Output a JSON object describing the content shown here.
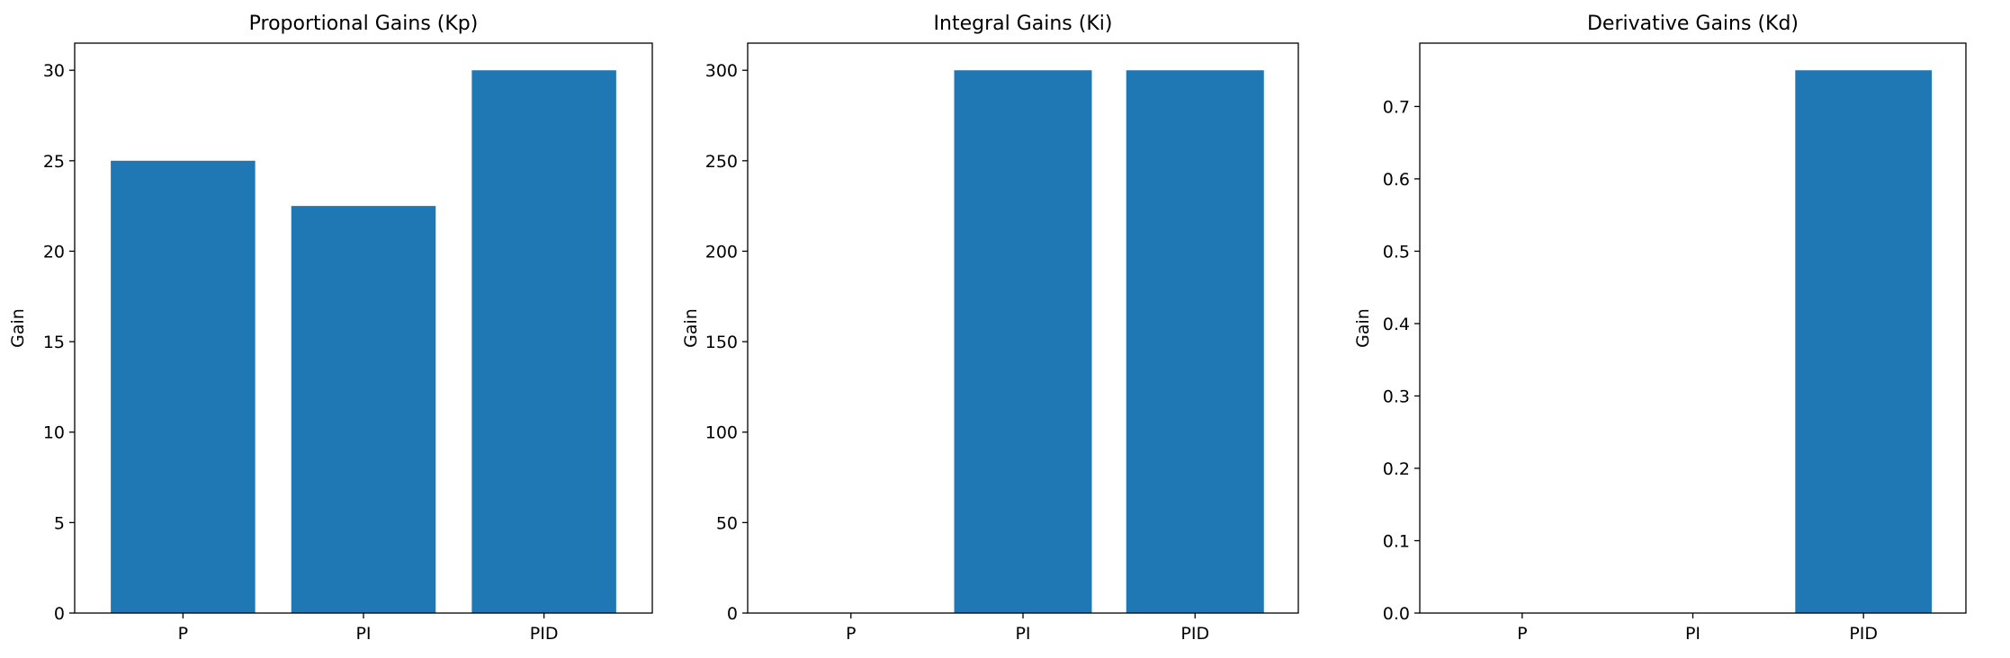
{
  "figure": {
    "bar_color": "#1f77b4",
    "axis_color": "#000000",
    "background": "#ffffff"
  },
  "chart_data": [
    {
      "type": "bar",
      "title": "Proportional Gains (Kp)",
      "xlabel": "",
      "ylabel": "Gain",
      "categories": [
        "P",
        "PI",
        "PID"
      ],
      "values": [
        25,
        22.5,
        30
      ],
      "ylim": [
        0,
        31.5
      ],
      "yticks": [
        0,
        5,
        10,
        15,
        20,
        25,
        30
      ],
      "ytick_labels": [
        "0",
        "5",
        "10",
        "15",
        "20",
        "25",
        "30"
      ],
      "grid": false,
      "legend": "none"
    },
    {
      "type": "bar",
      "title": "Integral Gains (Ki)",
      "xlabel": "",
      "ylabel": "Gain",
      "categories": [
        "P",
        "PI",
        "PID"
      ],
      "values": [
        0,
        300,
        300
      ],
      "ylim": [
        0,
        315
      ],
      "yticks": [
        0,
        50,
        100,
        150,
        200,
        250,
        300
      ],
      "ytick_labels": [
        "0",
        "50",
        "100",
        "150",
        "200",
        "250",
        "300"
      ],
      "grid": false,
      "legend": "none"
    },
    {
      "type": "bar",
      "title": "Derivative Gains (Kd)",
      "xlabel": "",
      "ylabel": "Gain",
      "categories": [
        "P",
        "PI",
        "PID"
      ],
      "values": [
        0,
        0,
        0.75
      ],
      "ylim": [
        0,
        0.7875
      ],
      "yticks": [
        0,
        0.1,
        0.2,
        0.3,
        0.4,
        0.5,
        0.6,
        0.7
      ],
      "ytick_labels": [
        "0.0",
        "0.1",
        "0.2",
        "0.3",
        "0.4",
        "0.5",
        "0.6",
        "0.7"
      ],
      "grid": false,
      "legend": "none"
    }
  ]
}
